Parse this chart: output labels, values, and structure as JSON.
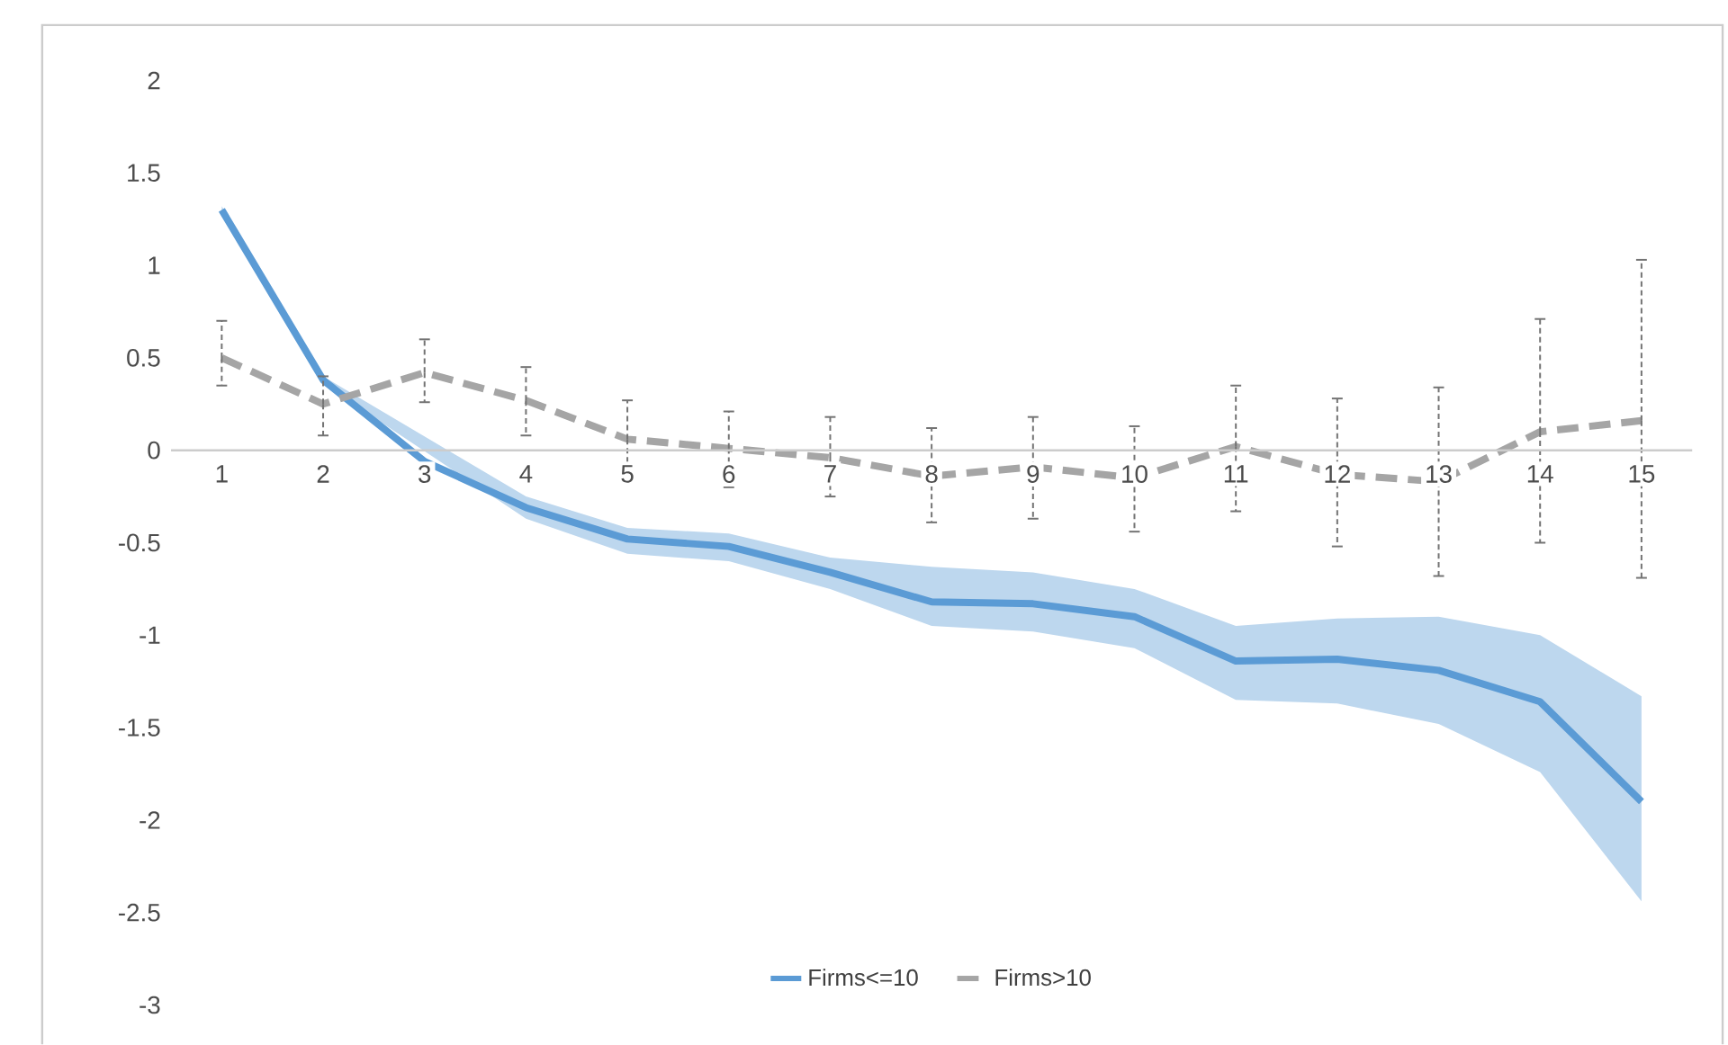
{
  "chart_data": {
    "type": "line",
    "categories": [
      "1",
      "2",
      "3",
      "4",
      "5",
      "6",
      "7",
      "8",
      "9",
      "10",
      "11",
      "12",
      "13",
      "14",
      "15"
    ],
    "series": [
      {
        "name": "Firms<=10",
        "color": "#5b9bd5",
        "line_style": "solid",
        "values": [
          1.3,
          0.38,
          -0.06,
          -0.31,
          -0.48,
          -0.52,
          -0.66,
          -0.82,
          -0.83,
          -0.9,
          -1.14,
          -1.13,
          -1.19,
          -1.36,
          -1.9
        ],
        "lower": [
          1.28,
          0.36,
          null,
          -0.37,
          -0.56,
          -0.6,
          -0.75,
          -0.95,
          -0.98,
          -1.07,
          -1.35,
          -1.37,
          -1.48,
          -1.74,
          -2.44
        ],
        "upper": [
          1.32,
          0.4,
          null,
          -0.25,
          -0.42,
          -0.45,
          -0.58,
          -0.63,
          -0.66,
          -0.75,
          -0.95,
          -0.91,
          -0.9,
          -1.0,
          -1.33
        ]
      },
      {
        "name": "Firms>10",
        "color": "#a5a5a5",
        "line_style": "dashed",
        "values": [
          0.5,
          0.25,
          0.42,
          0.27,
          0.06,
          0.01,
          -0.04,
          -0.14,
          -0.09,
          -0.15,
          0.02,
          -0.13,
          -0.17,
          0.1,
          0.16
        ],
        "errors": [
          [
            0.35,
            0.7
          ],
          [
            0.08,
            0.4
          ],
          [
            0.26,
            0.6
          ],
          [
            0.08,
            0.45
          ],
          [
            -0.12,
            0.27
          ],
          [
            -0.2,
            0.21
          ],
          [
            -0.25,
            0.18
          ],
          [
            -0.39,
            0.12
          ],
          [
            -0.37,
            0.18
          ],
          [
            -0.44,
            0.13
          ],
          [
            -0.33,
            0.35
          ],
          [
            -0.52,
            0.28
          ],
          [
            -0.68,
            0.34
          ],
          [
            -0.5,
            0.71
          ],
          [
            -0.69,
            1.03
          ]
        ]
      }
    ],
    "ylim": [
      -3,
      2
    ],
    "yticks": [
      -3,
      -2.5,
      -2,
      -1.5,
      -1,
      -0.5,
      0,
      0.5,
      1,
      1.5,
      2
    ],
    "grid": false,
    "legend": "bottom",
    "marker": "none"
  }
}
